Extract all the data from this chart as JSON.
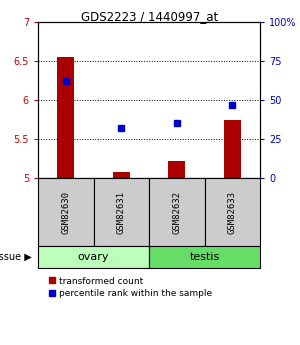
{
  "title": "GDS2223 / 1440997_at",
  "samples": [
    "GSM82630",
    "GSM82631",
    "GSM82632",
    "GSM82633"
  ],
  "red_values": [
    6.55,
    5.08,
    5.22,
    5.75
  ],
  "blue_values": [
    62,
    32,
    35,
    47
  ],
  "ylim_left": [
    5.0,
    7.0
  ],
  "ylim_right": [
    0,
    100
  ],
  "yticks_left": [
    5.0,
    5.5,
    6.0,
    6.5,
    7.0
  ],
  "yticks_right": [
    0,
    25,
    50,
    75,
    100
  ],
  "ytick_labels_left": [
    "5",
    "5.5",
    "6",
    "6.5",
    "7"
  ],
  "ytick_labels_right": [
    "0",
    "25",
    "50",
    "75",
    "100%"
  ],
  "gridlines": [
    5.5,
    6.0,
    6.5
  ],
  "tissue_groups": [
    {
      "label": "ovary",
      "samples": [
        0,
        1
      ],
      "color": "#bbffbb"
    },
    {
      "label": "testis",
      "samples": [
        2,
        3
      ],
      "color": "#66dd66"
    }
  ],
  "bar_color": "#aa0000",
  "dot_color": "#0000cc",
  "label_color_left": "#cc0000",
  "label_color_right": "#0000bb",
  "gsm_box_color": "#cccccc",
  "tissue_label": "tissue",
  "legend_red": "transformed count",
  "legend_blue": "percentile rank within the sample",
  "bar_width": 0.3
}
